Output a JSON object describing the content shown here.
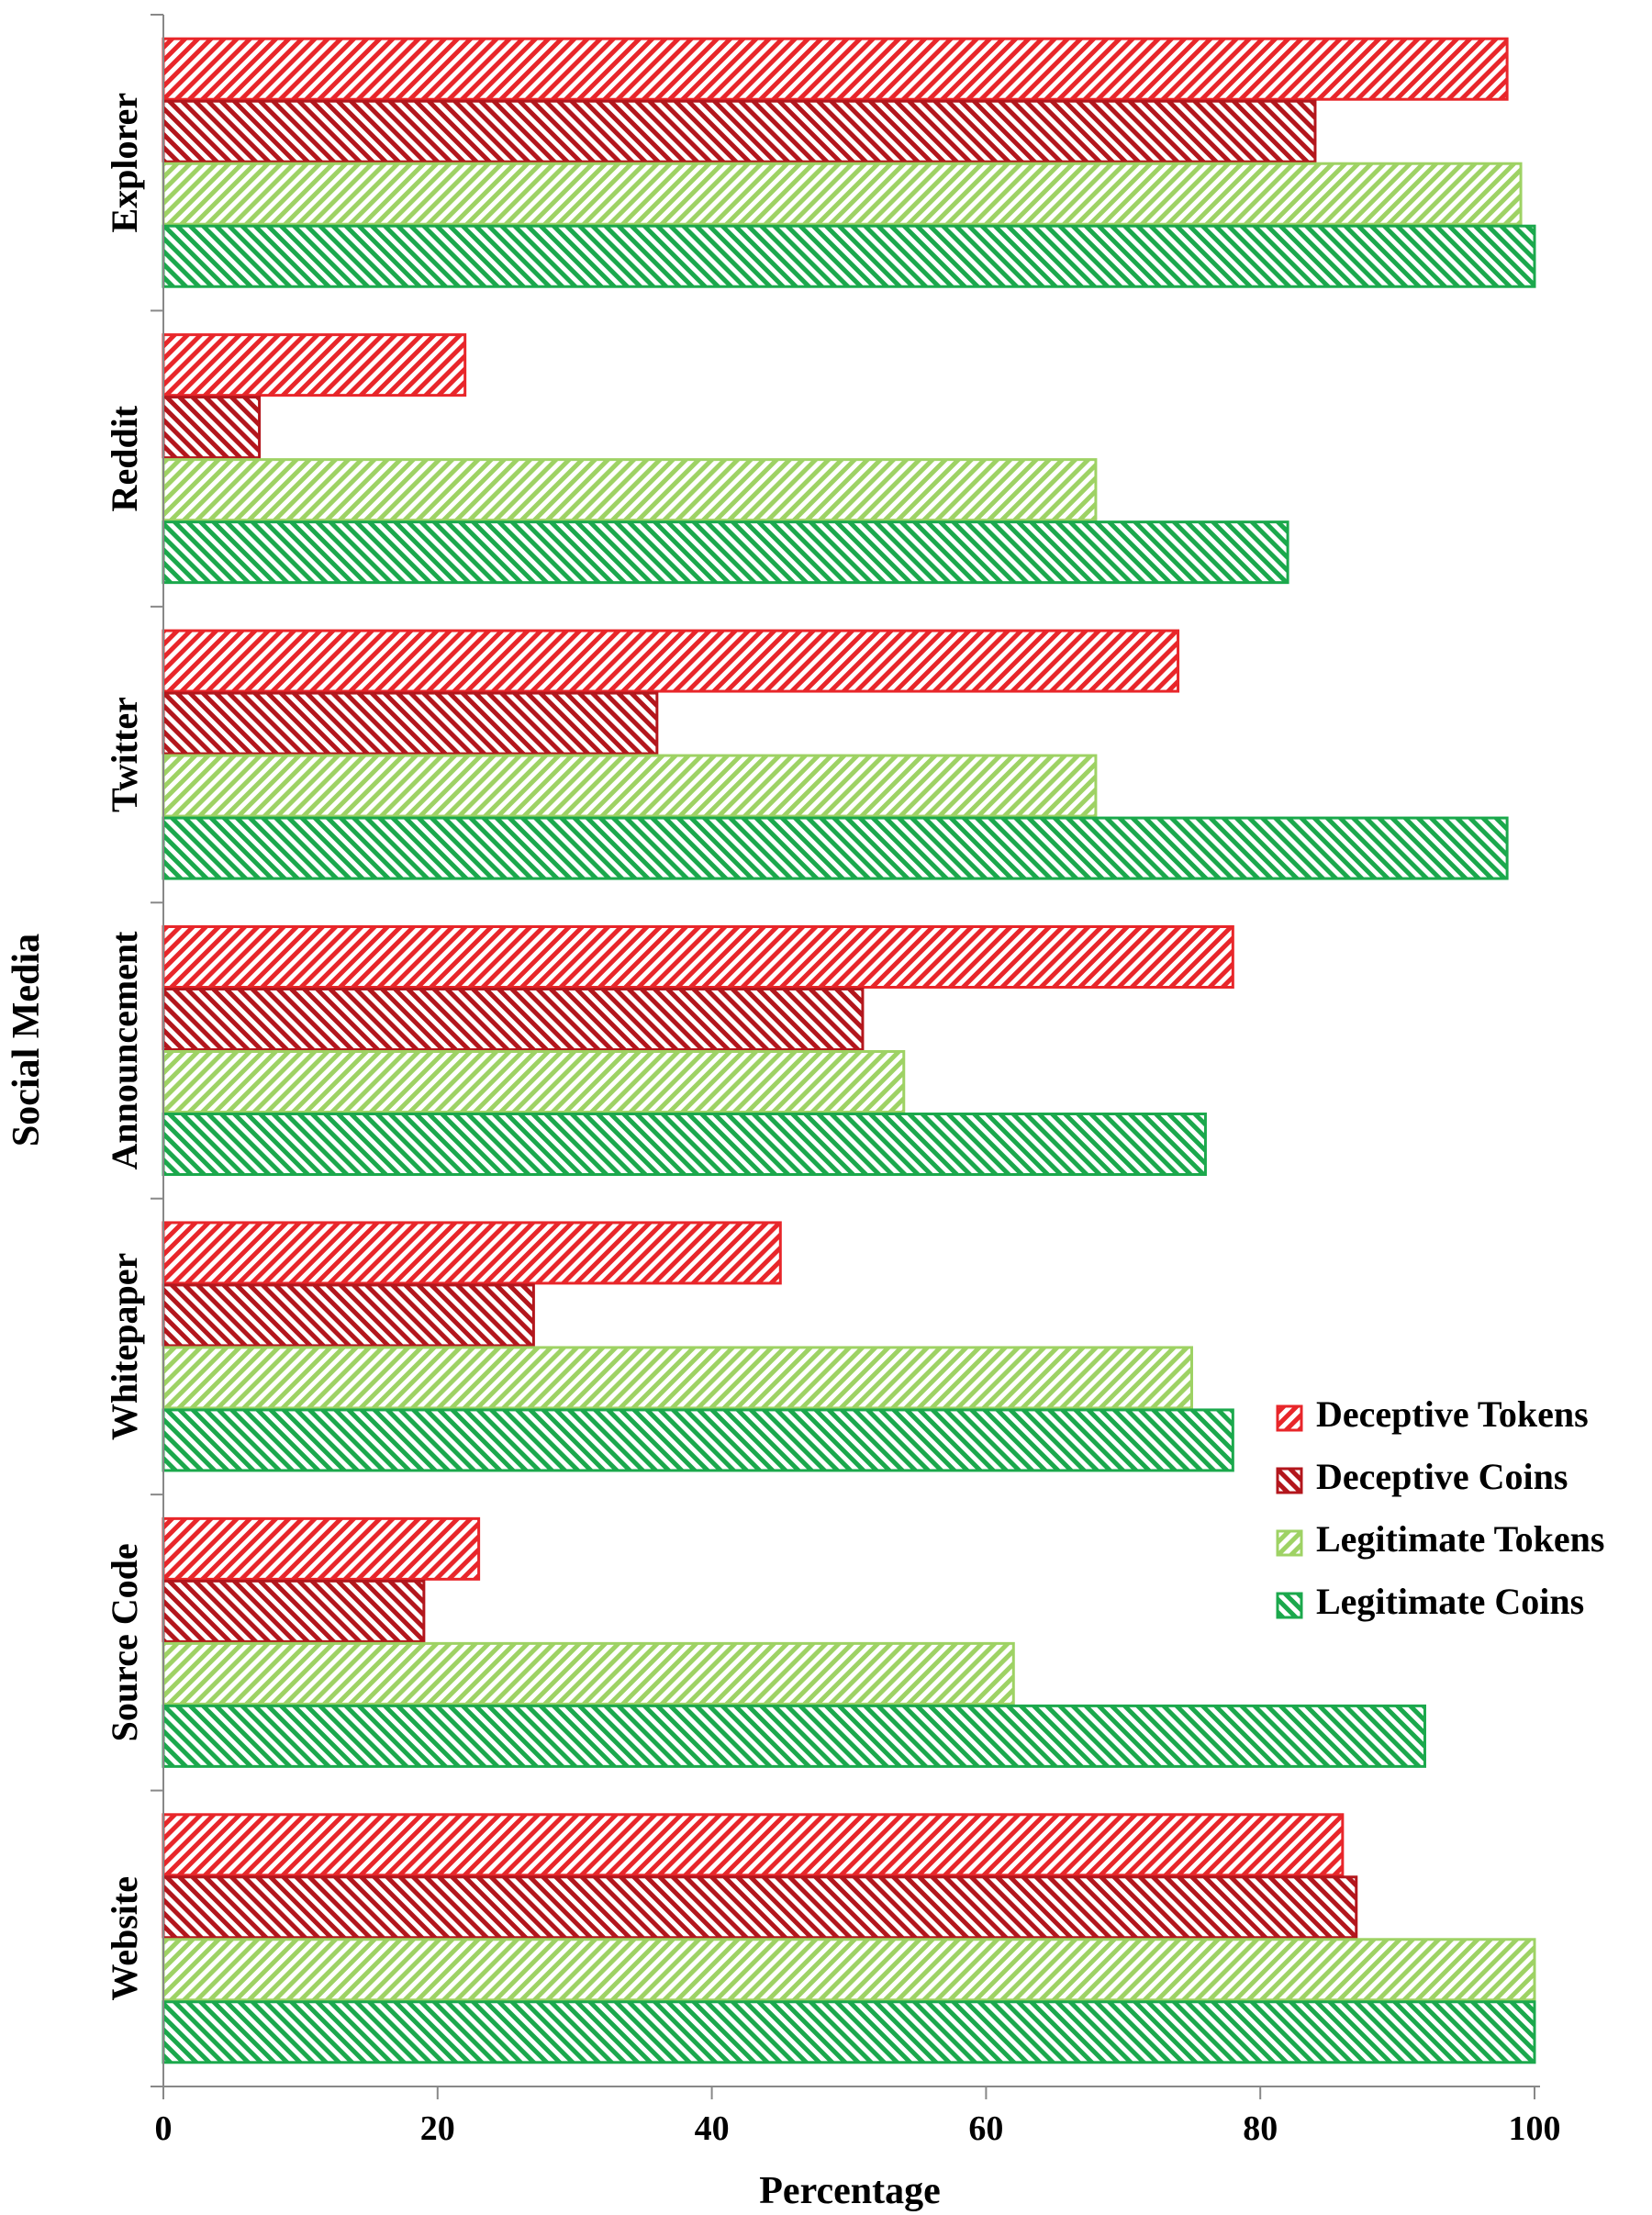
{
  "chart_data": {
    "type": "bar",
    "orientation": "horizontal",
    "title": "",
    "xlabel": "Percentage",
    "ylabel": "Social Media",
    "xlim": [
      0,
      100
    ],
    "xticks": [
      0,
      20,
      40,
      60,
      80,
      100
    ],
    "categories": [
      "Website",
      "Source Code",
      "Whitepaper",
      "Announcement",
      "Twitter",
      "Reddit",
      "Explorer"
    ],
    "series": [
      {
        "name": "Deceptive Tokens",
        "color": "#e8262a",
        "pattern": "forward-hatch",
        "values": [
          86,
          23,
          45,
          78,
          74,
          22,
          98
        ]
      },
      {
        "name": "Deceptive Coins",
        "color": "#b3161c",
        "pattern": "backward-hatch",
        "values": [
          87,
          19,
          27,
          51,
          36,
          7,
          84
        ]
      },
      {
        "name": "Legitimate Tokens",
        "color": "#9ed264",
        "pattern": "forward-hatch",
        "values": [
          100,
          62,
          75,
          54,
          68,
          68,
          99
        ]
      },
      {
        "name": "Legitimate Coins",
        "color": "#1ba84c",
        "pattern": "backward-hatch",
        "values": [
          100,
          92,
          78,
          76,
          98,
          82,
          100
        ]
      }
    ],
    "legend_position": "right-middle",
    "grid": false
  }
}
